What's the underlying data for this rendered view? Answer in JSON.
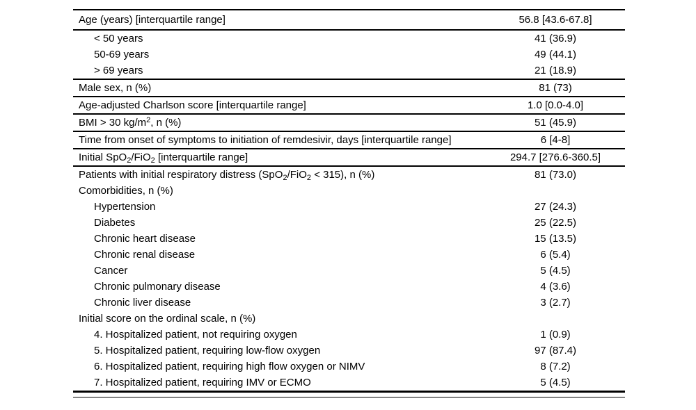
{
  "page": {
    "background_color": "#ffffff",
    "text_color": "#000000",
    "rule_color": "#000000"
  },
  "table": {
    "rows": [
      {
        "label": "Age (years) [interquartile range]",
        "value": "56.8 [43.6-67.8]",
        "indent": 0,
        "rule_after": "single",
        "tall": true
      },
      {
        "label": "< 50 years",
        "value": "41 (36.9)",
        "indent": 1,
        "rule_after": "none"
      },
      {
        "label": "50-69 years",
        "value": "49 (44.1)",
        "indent": 1,
        "rule_after": "none"
      },
      {
        "label": "> 69 years",
        "value": "21 (18.9)",
        "indent": 1,
        "rule_after": "single"
      },
      {
        "label": "Male sex, n (%)",
        "value": "81 (73)",
        "indent": 0,
        "rule_after": "single"
      },
      {
        "label": "Age-adjusted Charlson score [interquartile range]",
        "value": "1.0 [0.0-4.0]",
        "indent": 0,
        "rule_after": "single"
      },
      {
        "label": "BMI > 30 kg/m^2^, n (%)",
        "value": "51 (45.9)",
        "indent": 0,
        "rule_after": "single"
      },
      {
        "label": "Time from onset of symptoms to initiation of remdesivir, days [interquartile range]",
        "value": "6 [4-8]",
        "indent": 0,
        "rule_after": "single"
      },
      {
        "label": "Initial SpO~2~/FiO~2~ [interquartile range]",
        "value": "294.7 [276.6-360.5]",
        "indent": 0,
        "rule_after": "single"
      },
      {
        "label": "Patients with initial respiratory distress (SpO~2~/FiO~2~ < 315), n (%)",
        "value": "81 (73.0)",
        "indent": 0,
        "rule_after": "none"
      },
      {
        "label": "Comorbidities, n (%)",
        "value": "",
        "indent": 0,
        "rule_after": "none"
      },
      {
        "label": "Hypertension",
        "value": "27 (24.3)",
        "indent": 1,
        "rule_after": "none"
      },
      {
        "label": "Diabetes",
        "value": "25 (22.5)",
        "indent": 1,
        "rule_after": "none"
      },
      {
        "label": "Chronic heart disease",
        "value": "15 (13.5)",
        "indent": 1,
        "rule_after": "none"
      },
      {
        "label": "Chronic renal disease",
        "value": "6 (5.4)",
        "indent": 1,
        "rule_after": "none"
      },
      {
        "label": "Cancer",
        "value": "5 (4.5)",
        "indent": 1,
        "rule_after": "none"
      },
      {
        "label": "Chronic pulmonary disease",
        "value": "4 (3.6)",
        "indent": 1,
        "rule_after": "none"
      },
      {
        "label": "Chronic liver disease",
        "value": "3 (2.7)",
        "indent": 1,
        "rule_after": "none"
      },
      {
        "label": "Initial score on the ordinal scale, n (%)",
        "value": "",
        "indent": 0,
        "rule_after": "none"
      },
      {
        "label": "4. Hospitalized patient, not requiring oxygen",
        "value": "1 (0.9)",
        "indent": 1,
        "rule_after": "none"
      },
      {
        "label": "5. Hospitalized patient, requiring low-flow oxygen",
        "value": "97 (87.4)",
        "indent": 1,
        "rule_after": "none"
      },
      {
        "label": "6. Hospitalized patient, requiring high flow oxygen or NIMV",
        "value": "8 (7.2)",
        "indent": 1,
        "rule_after": "none"
      },
      {
        "label": "7. Hospitalized patient, requiring IMV or ECMO",
        "value": "5 (4.5)",
        "indent": 1,
        "rule_after": "heavy"
      }
    ]
  }
}
